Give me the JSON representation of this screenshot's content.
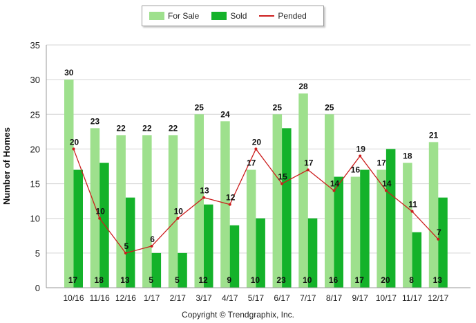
{
  "legend": {
    "for_sale_label": "For Sale",
    "sold_label": "Sold",
    "pended_label": "Pended"
  },
  "colors": {
    "for_sale": "#9ee08d",
    "sold": "#14b22a",
    "pended": "#cc1d1d",
    "grid": "#d4d4d4"
  },
  "footer": {
    "copyright": "Copyright © Trendgraphix, Inc."
  },
  "chart_data": {
    "type": "bar",
    "title": "",
    "xlabel": "",
    "ylabel": "Number of Homes",
    "ylim": [
      0,
      35
    ],
    "yticks": [
      0,
      5,
      10,
      15,
      20,
      25,
      30,
      35
    ],
    "grid": true,
    "legend_position": "top",
    "categories": [
      "10/16",
      "11/16",
      "12/16",
      "1/17",
      "2/17",
      "3/17",
      "4/17",
      "5/17",
      "6/17",
      "7/17",
      "8/17",
      "9/17",
      "10/17",
      "11/17",
      "12/17"
    ],
    "series": [
      {
        "name": "For Sale",
        "kind": "bar",
        "values": [
          30,
          23,
          22,
          22,
          22,
          25,
          24,
          17,
          25,
          28,
          25,
          16,
          17,
          18,
          21
        ]
      },
      {
        "name": "Sold",
        "kind": "bar",
        "values": [
          17,
          18,
          13,
          5,
          5,
          12,
          9,
          10,
          23,
          10,
          16,
          17,
          20,
          8,
          13
        ]
      },
      {
        "name": "Pended",
        "kind": "line",
        "values": [
          20,
          10,
          5,
          6,
          10,
          13,
          12,
          20,
          15,
          17,
          14,
          19,
          14,
          11,
          7
        ]
      }
    ]
  }
}
